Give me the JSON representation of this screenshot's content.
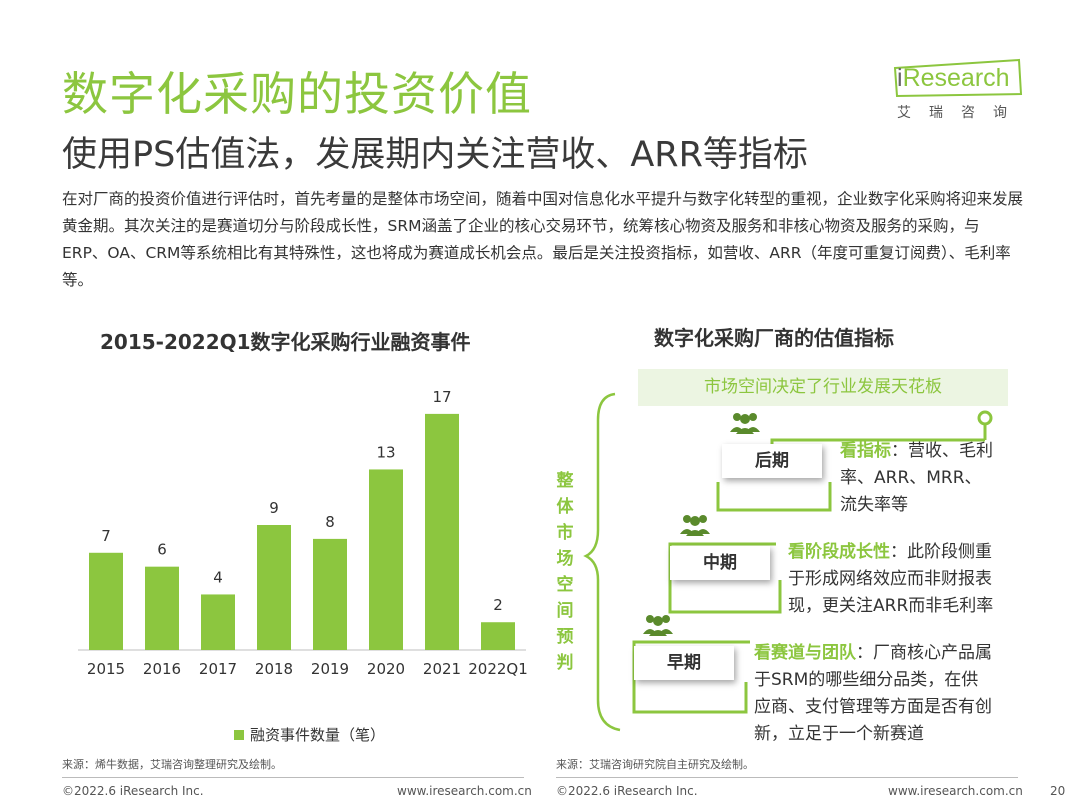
{
  "title": "数字化采购的投资价值",
  "subtitle": "使用PS估值法，发展期内关注营收、ARR等指标",
  "logo": {
    "brand_i": "i",
    "brand_rest": "Research",
    "cn": "艾瑞咨询"
  },
  "intro": "在对厂商的投资价值进行评估时，首先考量的是整体市场空间，随着中国对信息化水平提升与数字化转型的重视，企业数字化采购将迎来发展黄金期。其次关注的是赛道切分与阶段成长性，SRM涵盖了企业的核心交易环节，统筹核心物资及服务和非核心物资及服务的采购，与ERP、OA、CRM等系统相比有其特殊性，这也将成为赛道成长机会点。最后是关注投资指标，如营收、ARR（年度可重复订阅费）、毛利率等。",
  "chart_data": {
    "type": "bar",
    "title": "2015-2022Q1数字化采购行业融资事件",
    "categories": [
      "2015",
      "2016",
      "2017",
      "2018",
      "2019",
      "2020",
      "2021",
      "2022Q1"
    ],
    "series": [
      {
        "name": "融资事件数量（笔）",
        "values": [
          7,
          6,
          4,
          9,
          8,
          13,
          17,
          2
        ]
      }
    ],
    "ylim": [
      0,
      18
    ],
    "color": "#8cc63f",
    "grid": false,
    "legend": "bottom"
  },
  "right": {
    "title": "数字化采购厂商的估值指标",
    "banner": "市场空间决定了行业发展天花板",
    "vertical_label": [
      "整",
      "体",
      "市",
      "场",
      "空",
      "间",
      "预",
      "判"
    ],
    "stages": [
      {
        "label": "后期",
        "highlight": "看指标",
        "line1": "：营收、毛利",
        "line2": "率、ARR、MRR、",
        "line3": "流失率等"
      },
      {
        "label": "中期",
        "highlight": "看阶段成长性",
        "line1": "：此阶段侧重",
        "line2": "于形成网络效应而非财报表",
        "line3": "现，更关注ARR而非毛利率"
      },
      {
        "label": "早期",
        "highlight": "看赛道与团队",
        "line1": "：厂商核心产品属",
        "line2": "于SRM的哪些细分品类，在供",
        "line3": "应商、支付管理等方面是否有创",
        "line4": "新，立足于一个新赛道"
      }
    ]
  },
  "sources": {
    "left": "来源：烯牛数据，艾瑞咨询整理研究及绘制。",
    "right": "来源：艾瑞咨询研究院自主研究及绘制。"
  },
  "footer": {
    "copyright_left": "©2022.6 iResearch Inc.",
    "url_left": "www.iresearch.com.cn",
    "copyright_right": "©2022.6 iResearch Inc.",
    "url_right": "www.iresearch.com.cn",
    "page": "20"
  },
  "colors": {
    "accent": "#8cc63f",
    "dark_green": "#5a8a2c",
    "text": "#333333"
  }
}
